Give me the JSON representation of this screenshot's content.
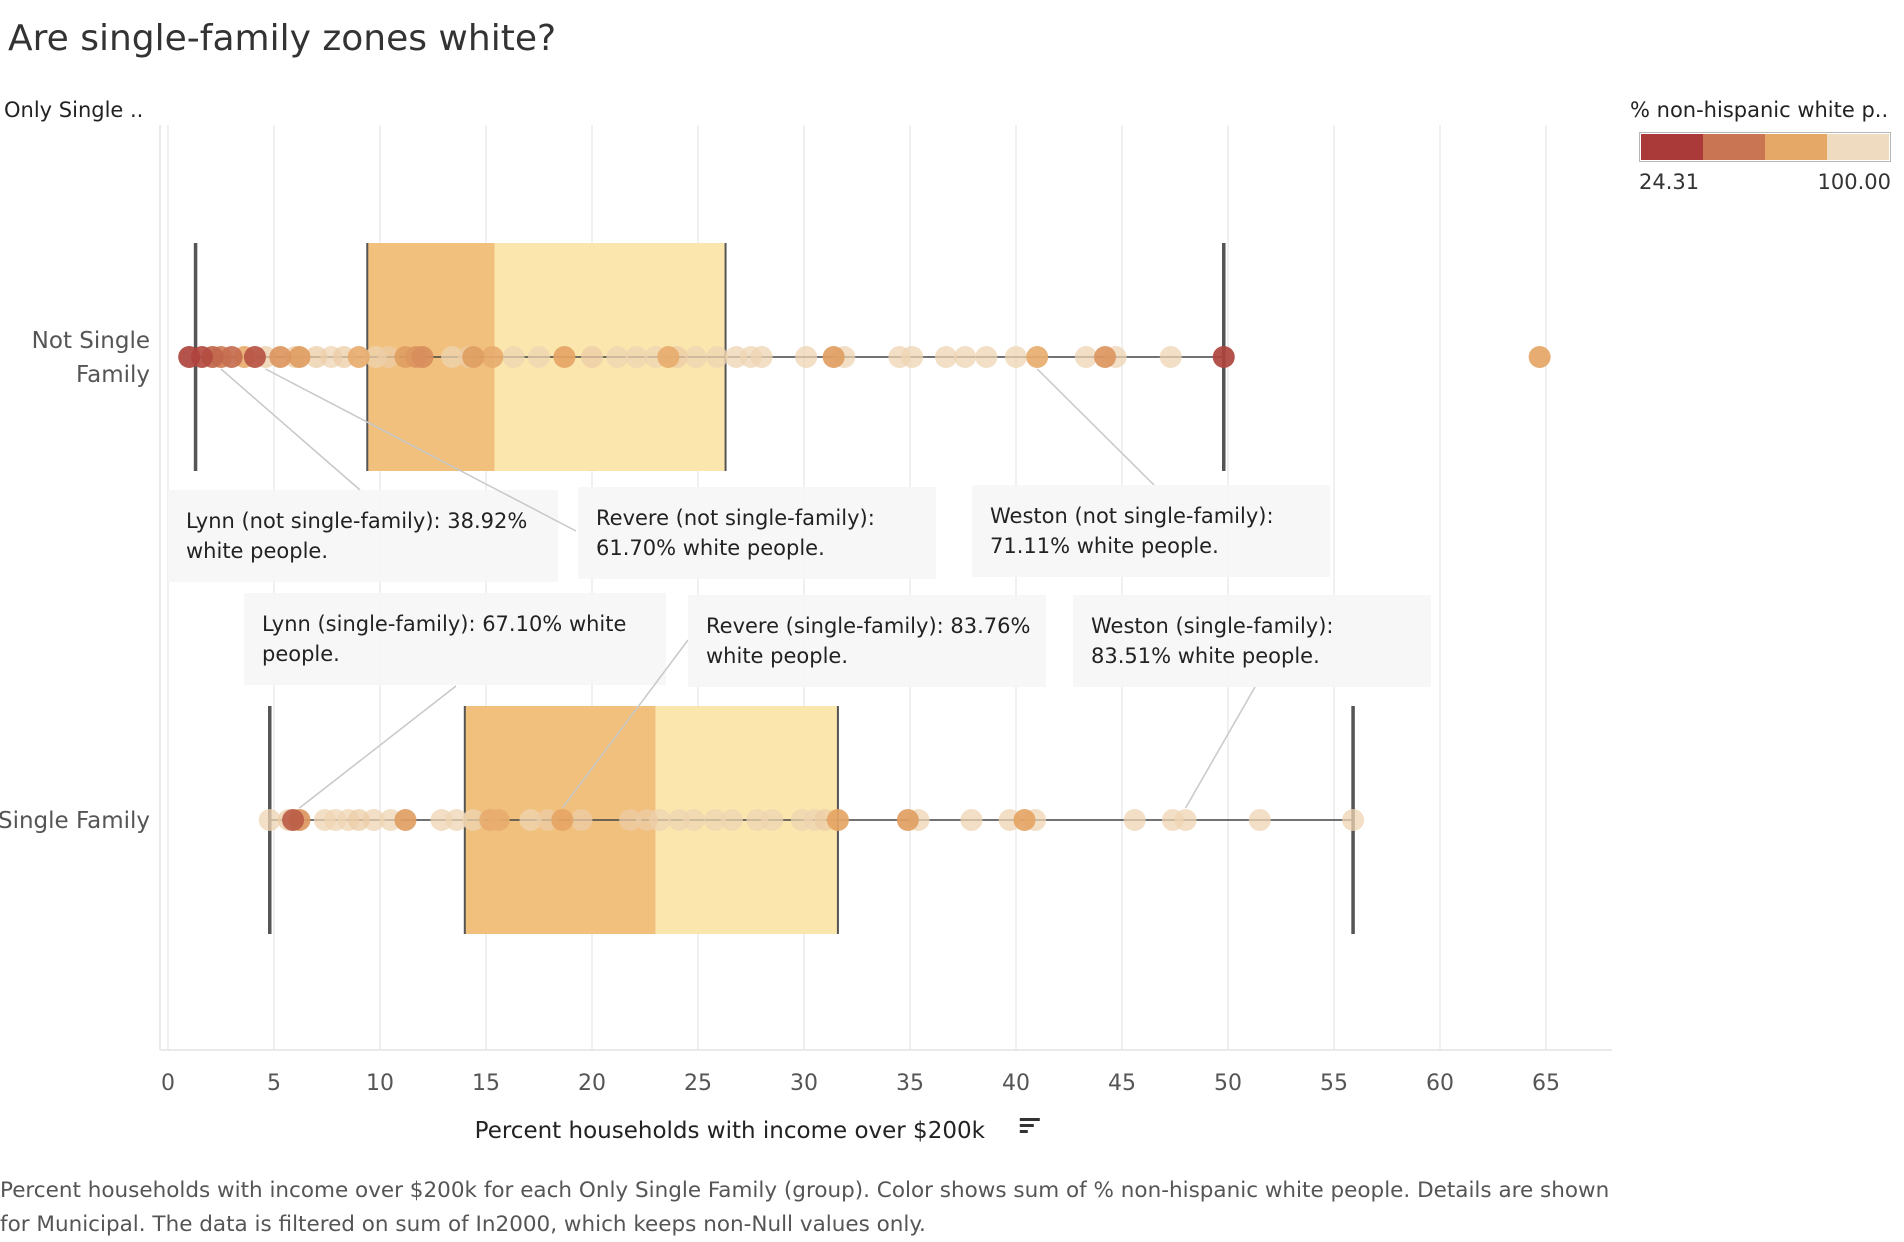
{
  "chart_data": {
    "type": "boxplot",
    "title": "Are single-family zones white?",
    "row_field_label": "Only Single ..",
    "xlabel": "Percent households with income over $200k",
    "xlim": [
      0,
      68
    ],
    "x_ticks": [
      0,
      5,
      10,
      15,
      20,
      25,
      30,
      35,
      40,
      45,
      50,
      55,
      60,
      65
    ],
    "grid": "vertical",
    "color_legend": {
      "title": "% non-hispanic white p..",
      "min_label": "24.31",
      "max_label": "100.00",
      "colors": [
        "#a93a39",
        "#c97452",
        "#e6a866",
        "#efdcc0"
      ],
      "placement": "top-right"
    },
    "groups": [
      {
        "name": "Not Single Family",
        "label_lines": [
          "Not Single",
          "Family"
        ],
        "whisker_low": 1.3,
        "q1": 9.4,
        "median": 15.4,
        "q3": 26.3,
        "whisker_high": 49.8,
        "points": [
          {
            "x": 1.0,
            "w": 0.05
          },
          {
            "x": 1.6,
            "w": 0.1
          },
          {
            "x": 2.1,
            "w": 0.25
          },
          {
            "x": 2.5,
            "w": 0.4
          },
          {
            "x": 3.0,
            "w": 0.3
          },
          {
            "x": 3.6,
            "w": 0.7
          },
          {
            "x": 4.1,
            "w": 0.15
          },
          {
            "x": 4.6,
            "w": 0.9
          },
          {
            "x": 5.3,
            "w": 0.55
          },
          {
            "x": 6.0,
            "w": 0.9
          },
          {
            "x": 6.2,
            "w": 0.6
          },
          {
            "x": 7.0,
            "w": 0.9
          },
          {
            "x": 7.7,
            "w": 0.95
          },
          {
            "x": 8.3,
            "w": 0.9
          },
          {
            "x": 9.0,
            "w": 0.7
          },
          {
            "x": 9.8,
            "w": 0.95
          },
          {
            "x": 10.4,
            "w": 0.9
          },
          {
            "x": 11.2,
            "w": 0.6
          },
          {
            "x": 11.7,
            "w": 0.55
          },
          {
            "x": 12.0,
            "w": 0.5
          },
          {
            "x": 13.4,
            "w": 0.95
          },
          {
            "x": 14.2,
            "w": 0.9
          },
          {
            "x": 14.4,
            "w": 0.6
          },
          {
            "x": 15.3,
            "w": 0.7
          },
          {
            "x": 16.3,
            "w": 0.95
          },
          {
            "x": 17.5,
            "w": 0.95
          },
          {
            "x": 18.7,
            "w": 0.65
          },
          {
            "x": 20.0,
            "w": 0.9
          },
          {
            "x": 21.2,
            "w": 0.95
          },
          {
            "x": 22.1,
            "w": 0.95
          },
          {
            "x": 23.0,
            "w": 0.95
          },
          {
            "x": 23.6,
            "w": 0.7
          },
          {
            "x": 24.0,
            "w": 0.9
          },
          {
            "x": 24.9,
            "w": 0.95
          },
          {
            "x": 25.9,
            "w": 0.95
          },
          {
            "x": 26.8,
            "w": 0.95
          },
          {
            "x": 27.5,
            "w": 0.95
          },
          {
            "x": 28.0,
            "w": 0.95
          },
          {
            "x": 30.1,
            "w": 0.95
          },
          {
            "x": 31.4,
            "w": 0.6
          },
          {
            "x": 31.9,
            "w": 0.95
          },
          {
            "x": 34.5,
            "w": 0.95
          },
          {
            "x": 35.1,
            "w": 0.95
          },
          {
            "x": 36.7,
            "w": 0.95
          },
          {
            "x": 37.6,
            "w": 0.95
          },
          {
            "x": 38.6,
            "w": 0.95
          },
          {
            "x": 40.0,
            "w": 0.95
          },
          {
            "x": 41.0,
            "w": 0.7
          },
          {
            "x": 43.3,
            "w": 0.95
          },
          {
            "x": 44.2,
            "w": 0.55
          },
          {
            "x": 44.7,
            "w": 0.95
          },
          {
            "x": 47.3,
            "w": 0.95
          },
          {
            "x": 49.8,
            "w": 0.05
          },
          {
            "x": 64.7,
            "w": 0.65
          }
        ]
      },
      {
        "name": "Single Family",
        "label_lines": [
          "Single Family"
        ],
        "whisker_low": 4.8,
        "q1": 14.0,
        "median": 23.0,
        "q3": 31.6,
        "whisker_high": 55.9,
        "points": [
          {
            "x": 4.8,
            "w": 0.95
          },
          {
            "x": 5.7,
            "w": 0.9
          },
          {
            "x": 5.9,
            "w": 0.2
          },
          {
            "x": 6.2,
            "w": 0.55
          },
          {
            "x": 7.4,
            "w": 0.95
          },
          {
            "x": 7.9,
            "w": 0.95
          },
          {
            "x": 8.5,
            "w": 0.95
          },
          {
            "x": 9.0,
            "w": 0.9
          },
          {
            "x": 9.7,
            "w": 0.95
          },
          {
            "x": 10.5,
            "w": 0.95
          },
          {
            "x": 11.2,
            "w": 0.6
          },
          {
            "x": 12.9,
            "w": 0.95
          },
          {
            "x": 13.6,
            "w": 0.95
          },
          {
            "x": 14.4,
            "w": 0.95
          },
          {
            "x": 15.2,
            "w": 0.7
          },
          {
            "x": 15.6,
            "w": 0.7
          },
          {
            "x": 17.1,
            "w": 0.95
          },
          {
            "x": 17.9,
            "w": 0.9
          },
          {
            "x": 18.6,
            "w": 0.65
          },
          {
            "x": 19.5,
            "w": 0.9
          },
          {
            "x": 21.8,
            "w": 0.9
          },
          {
            "x": 22.6,
            "w": 0.9
          },
          {
            "x": 23.2,
            "w": 0.95
          },
          {
            "x": 24.1,
            "w": 0.95
          },
          {
            "x": 24.8,
            "w": 0.95
          },
          {
            "x": 25.8,
            "w": 0.95
          },
          {
            "x": 26.6,
            "w": 0.95
          },
          {
            "x": 27.8,
            "w": 0.95
          },
          {
            "x": 28.5,
            "w": 0.95
          },
          {
            "x": 29.9,
            "w": 0.95
          },
          {
            "x": 30.5,
            "w": 0.95
          },
          {
            "x": 31.0,
            "w": 0.9
          },
          {
            "x": 31.6,
            "w": 0.65
          },
          {
            "x": 34.9,
            "w": 0.6
          },
          {
            "x": 35.4,
            "w": 0.95
          },
          {
            "x": 37.9,
            "w": 0.95
          },
          {
            "x": 39.7,
            "w": 0.95
          },
          {
            "x": 40.4,
            "w": 0.65
          },
          {
            "x": 40.9,
            "w": 0.95
          },
          {
            "x": 45.6,
            "w": 0.95
          },
          {
            "x": 47.4,
            "w": 0.95
          },
          {
            "x": 48.0,
            "w": 0.95
          },
          {
            "x": 51.5,
            "w": 0.95
          },
          {
            "x": 55.9,
            "w": 0.95
          }
        ]
      }
    ],
    "annotations": [
      {
        "group": 0,
        "x": 2.5,
        "lines": [
          "Lynn (not single-family):  38.92%",
          "white people."
        ]
      },
      {
        "group": 0,
        "x": 4.6,
        "lines": [
          "Revere (not single-family):",
          "61.70% white people."
        ]
      },
      {
        "group": 0,
        "x": 41.0,
        "lines": [
          "Weston (not single-family):",
          "71.11% white people."
        ]
      },
      {
        "group": 1,
        "x": 6.2,
        "lines": [
          "Lynn (single-family):  67.10% white",
          "people."
        ]
      },
      {
        "group": 1,
        "x": 18.6,
        "lines": [
          "Revere (single-family):  83.76%",
          "white people."
        ]
      },
      {
        "group": 1,
        "x": 48.0,
        "lines": [
          "Weston (single-family):",
          "83.51% white people."
        ]
      }
    ]
  },
  "caption": "Percent households with income over $200k for each Only Single Family (group).  Color shows sum of % non-hispanic white people.  Details are shown for Municipal. The data is filtered on sum of In2000, which keeps non-Null values only."
}
